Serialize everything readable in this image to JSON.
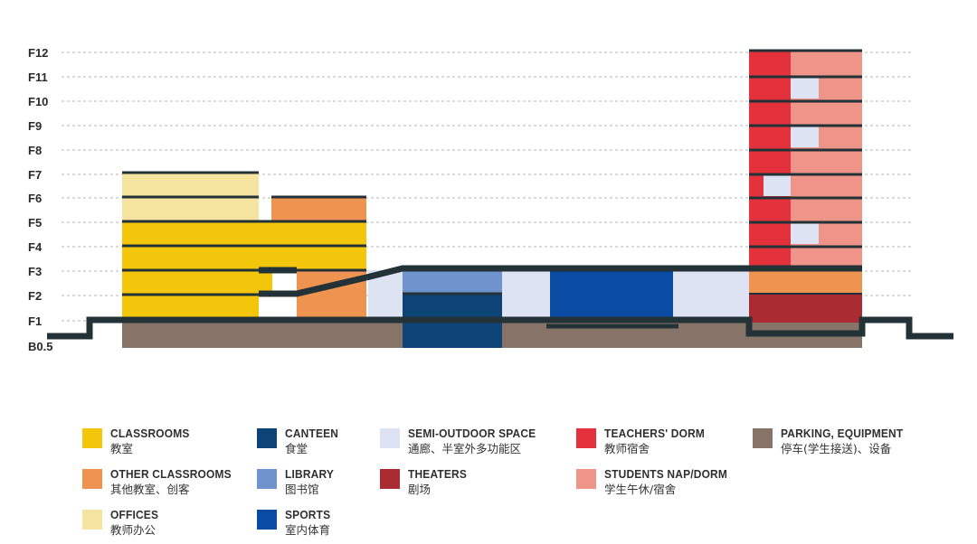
{
  "floors": [
    "F12",
    "F11",
    "F10",
    "F9",
    "F8",
    "F7",
    "F6",
    "F5",
    "F4",
    "F3",
    "F2",
    "F1",
    "B0.5"
  ],
  "colors": {
    "classrooms": "#f3c60c",
    "other_classrooms": "#ee9450",
    "offices": "#f5e3a0",
    "canteen": "#0c4477",
    "library": "#6e93cd",
    "sports": "#0a4ba4",
    "semi_outdoor": "#dde3f2",
    "theaters": "#aa2b32",
    "teachers_dorm": "#e3323c",
    "students_dorm": "#ee9488",
    "parking": "#867468",
    "structure": "#233236",
    "grid": "#b5b5b5"
  },
  "legend": [
    {
      "key": "classrooms",
      "en": "CLASSROOMS",
      "zh": "教室"
    },
    {
      "key": "other_classrooms",
      "en": "OTHER CLASSROOMS",
      "zh": "其他教室、创客"
    },
    {
      "key": "offices",
      "en": "OFFICES",
      "zh": "教师办公"
    },
    {
      "key": "canteen",
      "en": "CANTEEN",
      "zh": "食堂"
    },
    {
      "key": "library",
      "en": "LIBRARY",
      "zh": "图书馆"
    },
    {
      "key": "sports",
      "en": "SPORTS",
      "zh": "室内体育"
    },
    {
      "key": "semi_outdoor",
      "en": "SEMI-OUTDOOR SPACE",
      "zh": "通廊、半室外多功能区"
    },
    {
      "key": "theaters",
      "en": "THEATERS",
      "zh": "剧场"
    },
    {
      "key": "teachers_dorm",
      "en": "TEACHERS' DORM",
      "zh": "教师宿舍"
    },
    {
      "key": "students_dorm",
      "en": "STUDENTS NAP/DORM",
      "zh": "学生午休/宿舍"
    },
    {
      "key": "parking",
      "en": "PARKING, EQUIPMENT",
      "zh": "停车(学生接送)、设备"
    }
  ]
}
